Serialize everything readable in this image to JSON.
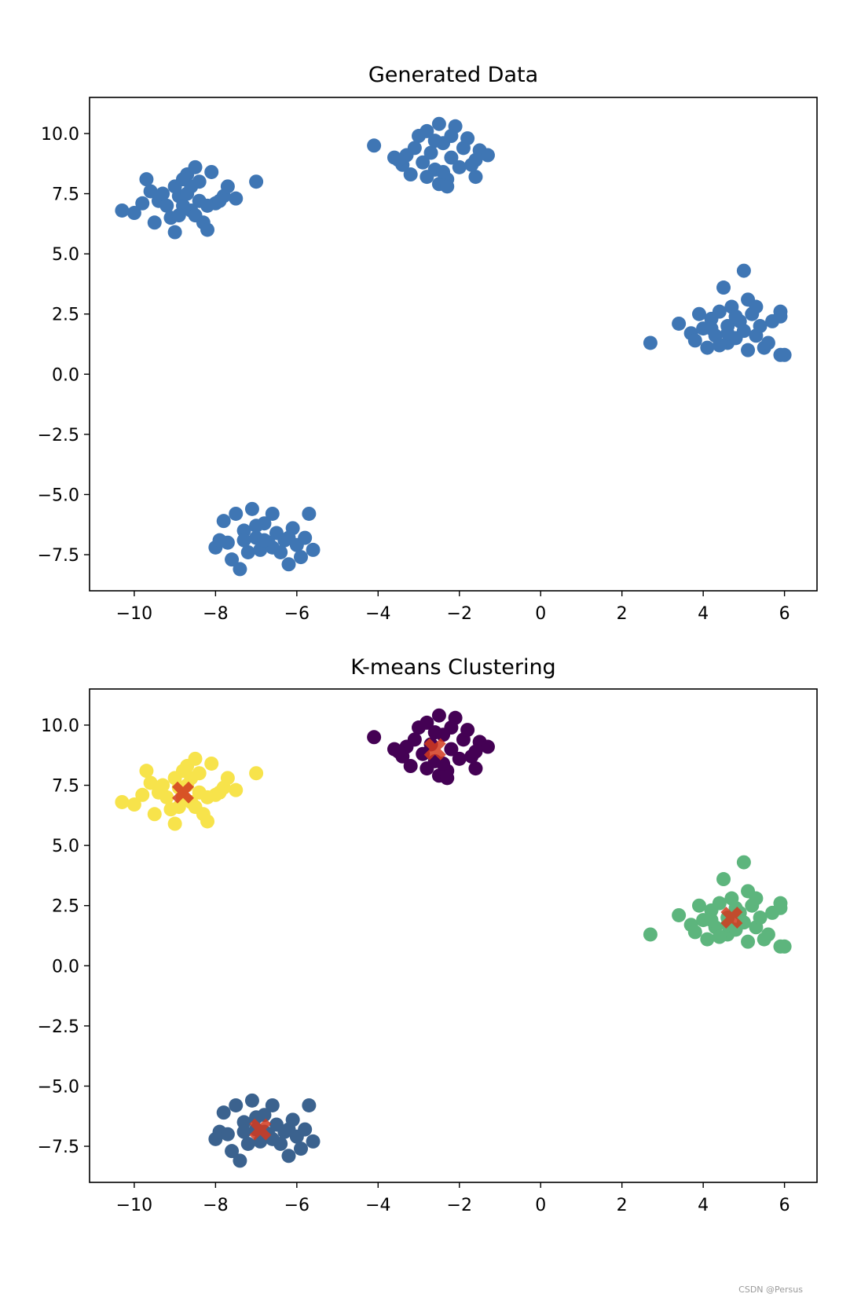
{
  "watermark": "CSDN @Persus",
  "chart_data": [
    {
      "type": "scatter",
      "title": "Generated Data",
      "xlabel": "",
      "ylabel": "",
      "xlim": [
        -11.1,
        6.8
      ],
      "ylim": [
        -9.0,
        11.5
      ],
      "xticks": [
        -10,
        -8,
        -6,
        -4,
        -2,
        0,
        2,
        4,
        6
      ],
      "xtick_labels": [
        "−10",
        "−8",
        "−6",
        "−4",
        "−2",
        "0",
        "2",
        "4",
        "6"
      ],
      "yticks": [
        10.0,
        7.5,
        5.0,
        2.5,
        0.0,
        -2.5,
        -5.0,
        -7.5
      ],
      "ytick_labels": [
        "10.0",
        "7.5",
        "5.0",
        "2.5",
        "0.0",
        "−2.5",
        "−5.0",
        "−7.5"
      ],
      "grid": false,
      "legend": "none",
      "point_color": "#3f76b4",
      "series": [
        {
          "points": [
            [
              -10.3,
              6.8
            ],
            [
              -10.0,
              6.7
            ],
            [
              -9.8,
              7.1
            ],
            [
              -9.6,
              7.6
            ],
            [
              -9.7,
              8.1
            ],
            [
              -9.4,
              7.2
            ],
            [
              -9.2,
              7.0
            ],
            [
              -9.1,
              6.5
            ],
            [
              -9.0,
              5.9
            ],
            [
              -8.9,
              7.4
            ],
            [
              -8.8,
              7.0
            ],
            [
              -8.7,
              8.3
            ],
            [
              -8.6,
              7.8
            ],
            [
              -8.5,
              8.6
            ],
            [
              -8.4,
              7.2
            ],
            [
              -8.3,
              6.3
            ],
            [
              -8.2,
              6.0
            ],
            [
              -8.1,
              8.4
            ],
            [
              -8.0,
              7.1
            ],
            [
              -7.8,
              7.4
            ],
            [
              -7.7,
              7.8
            ],
            [
              -7.5,
              7.3
            ],
            [
              -8.6,
              6.8
            ],
            [
              -8.9,
              6.6
            ],
            [
              -9.3,
              7.5
            ],
            [
              -8.4,
              8.0
            ],
            [
              -7.0,
              8.0
            ],
            [
              -8.7,
              7.5
            ],
            [
              -8.2,
              7.0
            ],
            [
              -9.0,
              7.8
            ],
            [
              -8.5,
              6.6
            ],
            [
              -7.9,
              7.2
            ],
            [
              -9.5,
              6.3
            ],
            [
              -8.8,
              8.1
            ],
            [
              -4.1,
              9.5
            ],
            [
              -3.6,
              9.0
            ],
            [
              -3.4,
              8.7
            ],
            [
              -3.3,
              9.1
            ],
            [
              -3.2,
              8.3
            ],
            [
              -3.0,
              9.9
            ],
            [
              -2.9,
              8.8
            ],
            [
              -2.8,
              10.1
            ],
            [
              -2.7,
              9.2
            ],
            [
              -2.6,
              8.5
            ],
            [
              -2.5,
              10.4
            ],
            [
              -2.4,
              9.6
            ],
            [
              -2.3,
              8.1
            ],
            [
              -2.2,
              9.0
            ],
            [
              -2.1,
              10.3
            ],
            [
              -2.0,
              8.6
            ],
            [
              -1.9,
              9.4
            ],
            [
              -1.8,
              9.8
            ],
            [
              -1.7,
              8.7
            ],
            [
              -1.6,
              8.2
            ],
            [
              -1.5,
              9.3
            ],
            [
              -1.3,
              9.1
            ],
            [
              -2.5,
              7.9
            ],
            [
              -2.3,
              7.8
            ],
            [
              -2.8,
              8.2
            ],
            [
              -3.5,
              8.9
            ],
            [
              -2.6,
              9.7
            ],
            [
              -2.2,
              9.9
            ],
            [
              -1.6,
              8.9
            ],
            [
              -3.1,
              9.4
            ],
            [
              -2.4,
              8.4
            ],
            [
              2.7,
              1.3
            ],
            [
              3.4,
              2.1
            ],
            [
              3.7,
              1.7
            ],
            [
              3.8,
              1.4
            ],
            [
              3.9,
              2.5
            ],
            [
              4.0,
              1.9
            ],
            [
              4.1,
              1.1
            ],
            [
              4.2,
              2.3
            ],
            [
              4.3,
              1.6
            ],
            [
              4.4,
              2.6
            ],
            [
              4.5,
              3.6
            ],
            [
              4.6,
              1.3
            ],
            [
              4.6,
              2.0
            ],
            [
              4.7,
              2.8
            ],
            [
              4.8,
              1.5
            ],
            [
              4.9,
              2.2
            ],
            [
              5.0,
              4.3
            ],
            [
              5.0,
              1.8
            ],
            [
              5.1,
              1.0
            ],
            [
              5.1,
              3.1
            ],
            [
              5.2,
              2.5
            ],
            [
              5.3,
              1.6
            ],
            [
              5.4,
              2.0
            ],
            [
              5.5,
              1.1
            ],
            [
              5.6,
              1.3
            ],
            [
              5.7,
              2.2
            ],
            [
              5.9,
              2.6
            ],
            [
              5.9,
              2.4
            ],
            [
              5.9,
              0.8
            ],
            [
              6.0,
              0.8
            ],
            [
              4.4,
              1.2
            ],
            [
              4.8,
              2.4
            ],
            [
              4.2,
              1.9
            ],
            [
              5.3,
              2.8
            ],
            [
              4.6,
              1.7
            ],
            [
              -8.0,
              -7.2
            ],
            [
              -7.9,
              -6.9
            ],
            [
              -7.8,
              -6.1
            ],
            [
              -7.7,
              -7.0
            ],
            [
              -7.6,
              -7.7
            ],
            [
              -7.5,
              -5.8
            ],
            [
              -7.4,
              -8.1
            ],
            [
              -7.3,
              -6.5
            ],
            [
              -7.2,
              -7.4
            ],
            [
              -7.1,
              -5.6
            ],
            [
              -7.0,
              -6.8
            ],
            [
              -6.9,
              -7.3
            ],
            [
              -6.8,
              -6.2
            ],
            [
              -6.7,
              -7.0
            ],
            [
              -6.6,
              -5.8
            ],
            [
              -6.5,
              -6.6
            ],
            [
              -6.4,
              -7.4
            ],
            [
              -6.3,
              -6.9
            ],
            [
              -6.2,
              -7.9
            ],
            [
              -6.1,
              -6.4
            ],
            [
              -6.0,
              -7.1
            ],
            [
              -5.9,
              -7.6
            ],
            [
              -5.8,
              -6.8
            ],
            [
              -5.7,
              -5.8
            ],
            [
              -5.6,
              -7.3
            ],
            [
              -7.0,
              -6.3
            ],
            [
              -6.6,
              -7.2
            ],
            [
              -7.3,
              -6.9
            ],
            [
              -6.2,
              -6.8
            ],
            [
              -6.8,
              -6.9
            ]
          ]
        }
      ]
    },
    {
      "type": "scatter",
      "title": "K-means Clustering",
      "xlabel": "",
      "ylabel": "",
      "xlim": [
        -11.1,
        6.8
      ],
      "ylim": [
        -9.0,
        11.5
      ],
      "xticks": [
        -10,
        -8,
        -6,
        -4,
        -2,
        0,
        2,
        4,
        6
      ],
      "xtick_labels": [
        "−10",
        "−8",
        "−6",
        "−4",
        "−2",
        "0",
        "2",
        "4",
        "6"
      ],
      "yticks": [
        10.0,
        7.5,
        5.0,
        2.5,
        0.0,
        -2.5,
        -5.0,
        -7.5
      ],
      "ytick_labels": [
        "10.0",
        "7.5",
        "5.0",
        "2.5",
        "0.0",
        "−2.5",
        "−5.0",
        "−7.5"
      ],
      "grid": false,
      "legend": "none",
      "centroid_color": "#d23a1e",
      "series": [
        {
          "cluster": 0,
          "color": "#440154",
          "points": [
            [
              -4.1,
              9.5
            ],
            [
              -3.6,
              9.0
            ],
            [
              -3.4,
              8.7
            ],
            [
              -3.3,
              9.1
            ],
            [
              -3.2,
              8.3
            ],
            [
              -3.0,
              9.9
            ],
            [
              -2.9,
              8.8
            ],
            [
              -2.8,
              10.1
            ],
            [
              -2.7,
              9.2
            ],
            [
              -2.6,
              8.5
            ],
            [
              -2.5,
              10.4
            ],
            [
              -2.4,
              9.6
            ],
            [
              -2.3,
              8.1
            ],
            [
              -2.2,
              9.0
            ],
            [
              -2.1,
              10.3
            ],
            [
              -2.0,
              8.6
            ],
            [
              -1.9,
              9.4
            ],
            [
              -1.8,
              9.8
            ],
            [
              -1.7,
              8.7
            ],
            [
              -1.6,
              8.2
            ],
            [
              -1.5,
              9.3
            ],
            [
              -1.3,
              9.1
            ],
            [
              -2.5,
              7.9
            ],
            [
              -2.3,
              7.8
            ],
            [
              -2.8,
              8.2
            ],
            [
              -3.5,
              8.9
            ],
            [
              -2.6,
              9.7
            ],
            [
              -2.2,
              9.9
            ],
            [
              -1.6,
              8.9
            ],
            [
              -3.1,
              9.4
            ],
            [
              -2.4,
              8.4
            ]
          ]
        },
        {
          "cluster": 1,
          "color": "#3b628e",
          "points": [
            [
              -8.0,
              -7.2
            ],
            [
              -7.9,
              -6.9
            ],
            [
              -7.8,
              -6.1
            ],
            [
              -7.7,
              -7.0
            ],
            [
              -7.6,
              -7.7
            ],
            [
              -7.5,
              -5.8
            ],
            [
              -7.4,
              -8.1
            ],
            [
              -7.3,
              -6.5
            ],
            [
              -7.2,
              -7.4
            ],
            [
              -7.1,
              -5.6
            ],
            [
              -7.0,
              -6.8
            ],
            [
              -6.9,
              -7.3
            ],
            [
              -6.8,
              -6.2
            ],
            [
              -6.7,
              -7.0
            ],
            [
              -6.6,
              -5.8
            ],
            [
              -6.5,
              -6.6
            ],
            [
              -6.4,
              -7.4
            ],
            [
              -6.3,
              -6.9
            ],
            [
              -6.2,
              -7.9
            ],
            [
              -6.1,
              -6.4
            ],
            [
              -6.0,
              -7.1
            ],
            [
              -5.9,
              -7.6
            ],
            [
              -5.8,
              -6.8
            ],
            [
              -5.7,
              -5.8
            ],
            [
              -5.6,
              -7.3
            ],
            [
              -7.0,
              -6.3
            ],
            [
              -6.6,
              -7.2
            ],
            [
              -7.3,
              -6.9
            ],
            [
              -6.2,
              -6.8
            ],
            [
              -6.8,
              -6.9
            ]
          ]
        },
        {
          "cluster": 2,
          "color": "#5db57d",
          "points": [
            [
              2.7,
              1.3
            ],
            [
              3.4,
              2.1
            ],
            [
              3.7,
              1.7
            ],
            [
              3.8,
              1.4
            ],
            [
              3.9,
              2.5
            ],
            [
              4.0,
              1.9
            ],
            [
              4.1,
              1.1
            ],
            [
              4.2,
              2.3
            ],
            [
              4.3,
              1.6
            ],
            [
              4.4,
              2.6
            ],
            [
              4.5,
              3.6
            ],
            [
              4.6,
              1.3
            ],
            [
              4.6,
              2.0
            ],
            [
              4.7,
              2.8
            ],
            [
              4.8,
              1.5
            ],
            [
              4.9,
              2.2
            ],
            [
              5.0,
              4.3
            ],
            [
              5.0,
              1.8
            ],
            [
              5.1,
              1.0
            ],
            [
              5.1,
              3.1
            ],
            [
              5.2,
              2.5
            ],
            [
              5.3,
              1.6
            ],
            [
              5.4,
              2.0
            ],
            [
              5.5,
              1.1
            ],
            [
              5.6,
              1.3
            ],
            [
              5.7,
              2.2
            ],
            [
              5.9,
              2.6
            ],
            [
              5.9,
              2.4
            ],
            [
              5.9,
              0.8
            ],
            [
              6.0,
              0.8
            ],
            [
              4.4,
              1.2
            ],
            [
              4.8,
              2.4
            ],
            [
              4.2,
              1.9
            ],
            [
              5.3,
              2.8
            ],
            [
              4.6,
              1.7
            ]
          ]
        },
        {
          "cluster": 3,
          "color": "#f7e34b",
          "points": [
            [
              -10.3,
              6.8
            ],
            [
              -10.0,
              6.7
            ],
            [
              -9.8,
              7.1
            ],
            [
              -9.6,
              7.6
            ],
            [
              -9.7,
              8.1
            ],
            [
              -9.4,
              7.2
            ],
            [
              -9.2,
              7.0
            ],
            [
              -9.1,
              6.5
            ],
            [
              -9.0,
              5.9
            ],
            [
              -8.9,
              7.4
            ],
            [
              -8.8,
              7.0
            ],
            [
              -8.7,
              8.3
            ],
            [
              -8.6,
              7.8
            ],
            [
              -8.5,
              8.6
            ],
            [
              -8.4,
              7.2
            ],
            [
              -8.3,
              6.3
            ],
            [
              -8.2,
              6.0
            ],
            [
              -8.1,
              8.4
            ],
            [
              -8.0,
              7.1
            ],
            [
              -7.8,
              7.4
            ],
            [
              -7.7,
              7.8
            ],
            [
              -7.5,
              7.3
            ],
            [
              -8.6,
              6.8
            ],
            [
              -8.9,
              6.6
            ],
            [
              -9.3,
              7.5
            ],
            [
              -8.4,
              8.0
            ],
            [
              -7.0,
              8.0
            ],
            [
              -8.7,
              7.5
            ],
            [
              -8.2,
              7.0
            ],
            [
              -9.0,
              7.8
            ],
            [
              -8.5,
              6.6
            ],
            [
              -7.9,
              7.2
            ],
            [
              -9.5,
              6.3
            ],
            [
              -8.8,
              8.1
            ]
          ]
        }
      ],
      "centroids": [
        [
          -2.6,
          9.0
        ],
        [
          -6.9,
          -6.8
        ],
        [
          4.7,
          2.0
        ],
        [
          -8.8,
          7.2
        ]
      ]
    }
  ]
}
